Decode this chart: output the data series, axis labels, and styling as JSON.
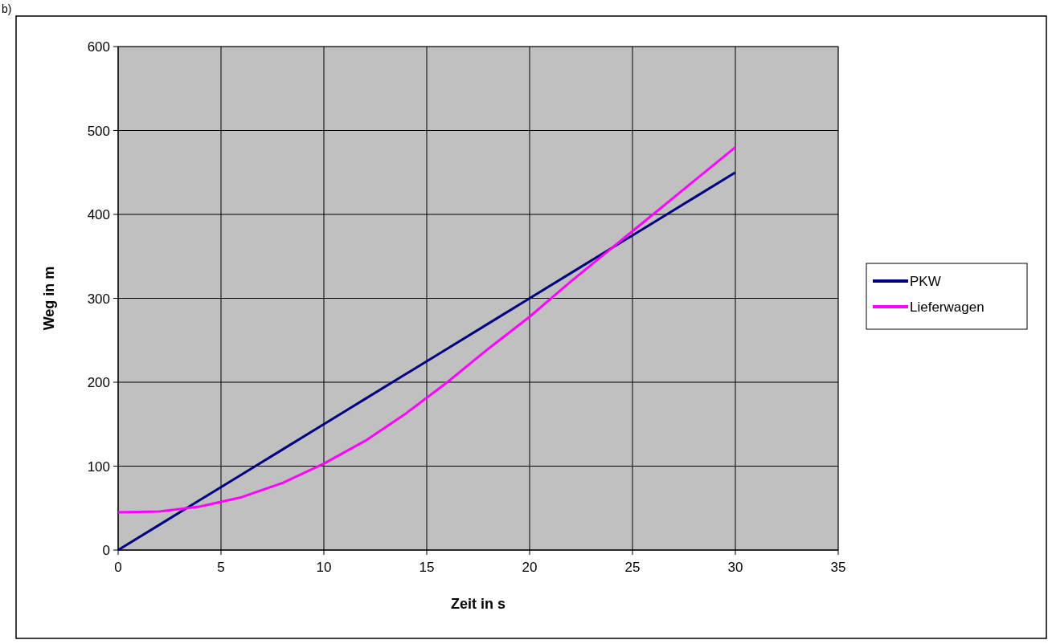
{
  "chart_data": {
    "type": "line",
    "xlabel": "Zeit in s",
    "ylabel": "Weg in m",
    "annotations": [
      "b)"
    ],
    "xlim": [
      0,
      35
    ],
    "xticks": [
      0,
      5,
      10,
      15,
      20,
      25,
      30,
      35
    ],
    "ylim": [
      0,
      600
    ],
    "yticks": [
      0,
      100,
      200,
      300,
      400,
      500,
      600
    ],
    "grid": true,
    "legend": "right",
    "marker": "none",
    "line_style": "solid",
    "series": [
      {
        "name": "PKW",
        "color": "#000080",
        "x": [
          0,
          2,
          4,
          6,
          8,
          10,
          12,
          14,
          16,
          18,
          20,
          22,
          24,
          26,
          28,
          30
        ],
        "values": [
          0,
          30,
          60,
          90,
          120,
          150,
          180,
          210,
          240,
          270,
          300,
          330,
          360,
          390,
          420,
          450
        ]
      },
      {
        "name": "Lieferwagen",
        "color": "#ff00ff",
        "x": [
          0,
          2,
          4,
          6,
          8,
          10,
          12,
          14,
          16,
          18,
          20,
          22,
          24,
          26,
          28,
          30
        ],
        "values": [
          45,
          46,
          52,
          63,
          80,
          103,
          130,
          163,
          200,
          240,
          278,
          320,
          360,
          400,
          440,
          480
        ]
      }
    ]
  }
}
